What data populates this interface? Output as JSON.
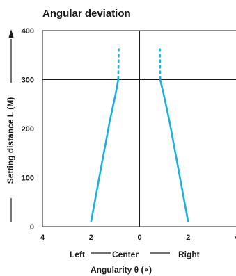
{
  "chart_data": {
    "type": "line",
    "title": "Angular deviation",
    "ylabel": "Setting distance L (M)",
    "xlabel": "Angularity θ (∘)",
    "x_direction_labels": {
      "left": "Left",
      "center": "Center",
      "right": "Right"
    },
    "xlim": [
      -4,
      4
    ],
    "ylim": [
      0,
      400
    ],
    "x_ticks": [
      -4,
      -2,
      0,
      2,
      4
    ],
    "x_tick_labels": [
      "4",
      "2",
      "0",
      "2",
      "4"
    ],
    "y_ticks": [
      0,
      100,
      200,
      300,
      400
    ],
    "y_tick_labels": [
      "0",
      "100",
      "200",
      "300",
      "400"
    ],
    "reference_lines": {
      "x": 0,
      "y": 300
    },
    "line_color": "#1ab0e0",
    "series": [
      {
        "points": [
          {
            "x": -2.0,
            "y": 10
          },
          {
            "x": -1.85,
            "y": 50
          },
          {
            "x": -1.7,
            "y": 90
          },
          {
            "x": -1.55,
            "y": 130
          },
          {
            "x": -1.4,
            "y": 170
          },
          {
            "x": -1.25,
            "y": 210
          },
          {
            "x": -1.1,
            "y": 245
          },
          {
            "x": -0.97,
            "y": 275
          },
          {
            "x": -0.88,
            "y": 300
          }
        ],
        "dashed_extension": [
          {
            "x": -0.88,
            "y": 300
          },
          {
            "x": -0.86,
            "y": 365
          }
        ]
      },
      {
        "points": [
          {
            "x": 2.0,
            "y": 10
          },
          {
            "x": 1.85,
            "y": 50
          },
          {
            "x": 1.7,
            "y": 90
          },
          {
            "x": 1.55,
            "y": 130
          },
          {
            "x": 1.4,
            "y": 170
          },
          {
            "x": 1.25,
            "y": 210
          },
          {
            "x": 1.1,
            "y": 245
          },
          {
            "x": 0.97,
            "y": 275
          },
          {
            "x": 0.85,
            "y": 300
          }
        ],
        "dashed_extension": [
          {
            "x": 0.85,
            "y": 300
          },
          {
            "x": 0.83,
            "y": 365
          }
        ]
      }
    ]
  }
}
